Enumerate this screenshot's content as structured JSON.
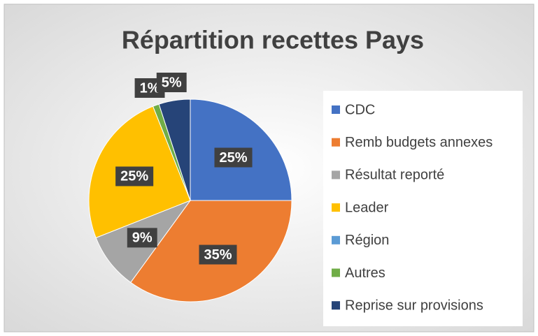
{
  "chart_data": {
    "type": "pie",
    "title": "Répartition recettes Pays",
    "categories": [
      "CDC",
      "Remb budgets annexes",
      "Résultat reporté",
      "Leader",
      "Région",
      "Autres",
      "Reprise sur provisions"
    ],
    "values": [
      25,
      35,
      9,
      25,
      0,
      1,
      5
    ],
    "value_labels": [
      "25%",
      "35%",
      "9%",
      "25%",
      null,
      "1%",
      "5%"
    ],
    "colors": [
      "#4472c4",
      "#ed7d31",
      "#a5a5a5",
      "#ffc000",
      "#5b9bd5",
      "#70ad47",
      "#264478"
    ],
    "legend": "right"
  }
}
